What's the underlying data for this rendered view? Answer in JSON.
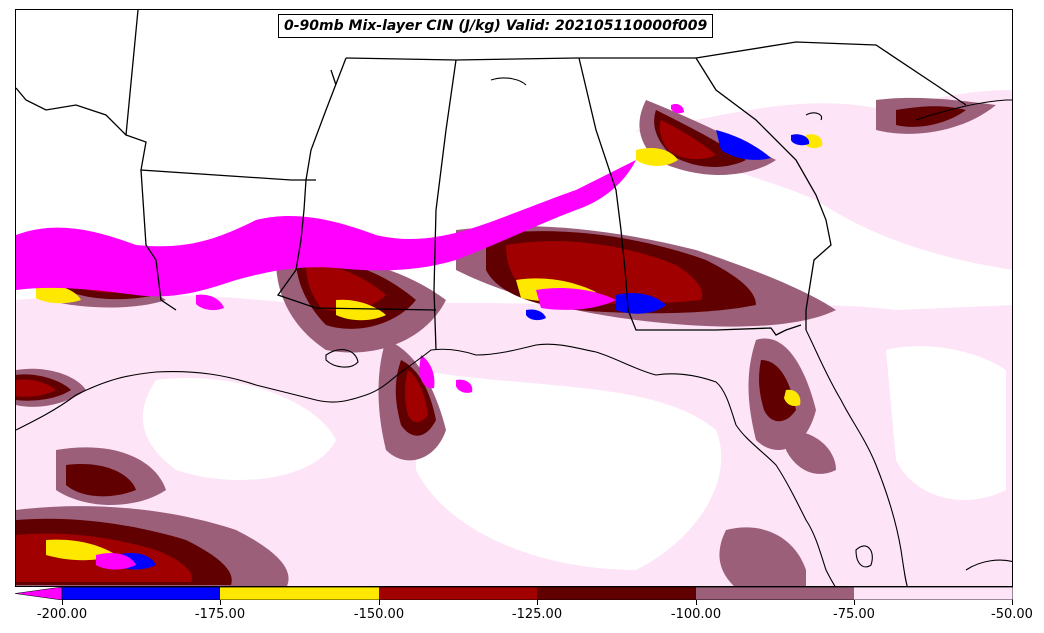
{
  "title": "0-90mb Mix-layer CIN (J/kg) Valid: 202105110000f009",
  "colorbar": {
    "ticks": [
      "-200.00",
      "-175.00",
      "-150.00",
      "-125.00",
      "-100.00",
      "-75.00",
      "-50.00"
    ],
    "segments": [
      {
        "range": "< -200",
        "color": "#ff00ff"
      },
      {
        "range": "-200 to -175",
        "color": "#0000ff"
      },
      {
        "range": "-175 to -150",
        "color": "#ffe800"
      },
      {
        "range": "-150 to -125",
        "color": "#a00000"
      },
      {
        "range": "-125 to -100",
        "color": "#600000"
      },
      {
        "range": "-100 to -75",
        "color": "#9b5f7a"
      },
      {
        "range": "-75 to -50",
        "color": "#fde4f7"
      }
    ]
  },
  "colors": {
    "magenta": "#ff00ff",
    "blue": "#0000ff",
    "yellow": "#ffe800",
    "red": "#a00000",
    "darkred": "#600000",
    "mauve": "#9b5f7a",
    "pink": "#fde4f7",
    "background": "#ffffff",
    "boundary": "#000000"
  }
}
